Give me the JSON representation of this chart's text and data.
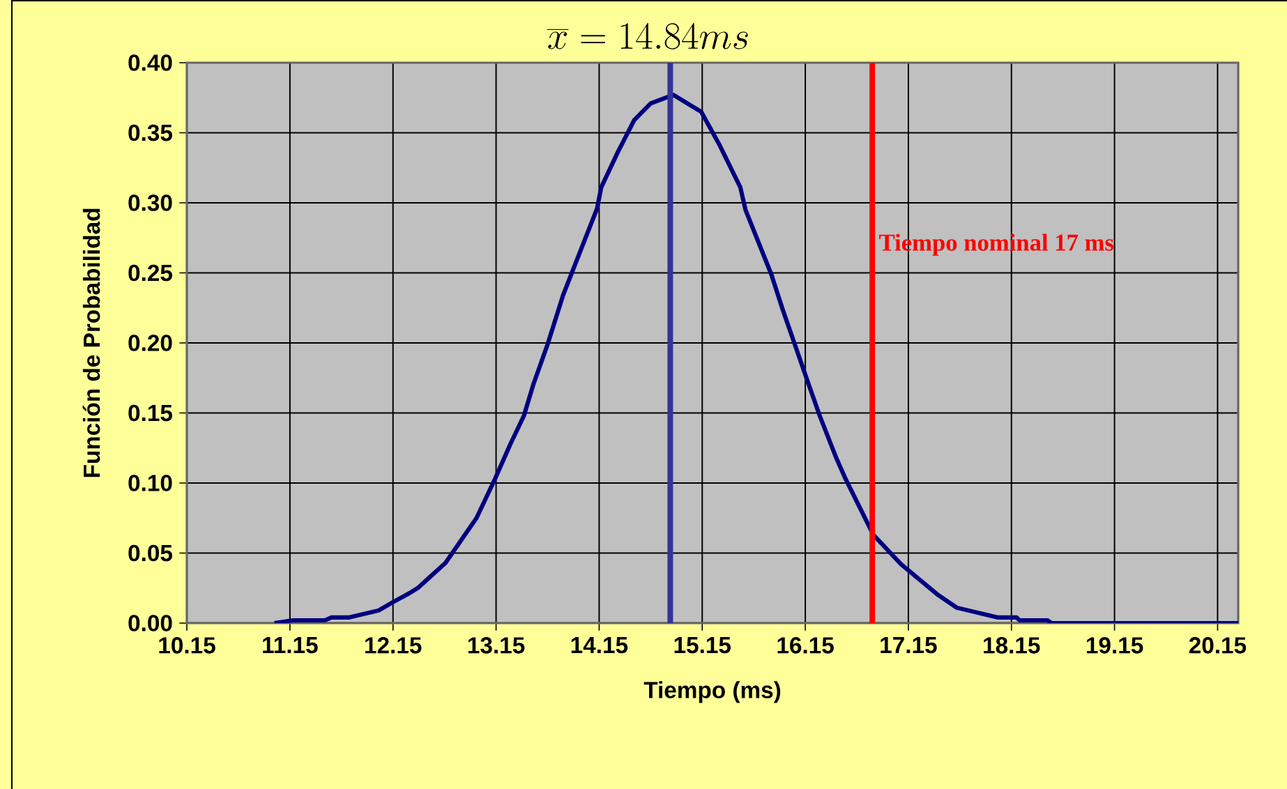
{
  "chart_data": {
    "type": "line",
    "title": "\\overline{x}=14.84ms",
    "xlabel": "Tiempo (ms)",
    "ylabel": "Función de Probabilidad",
    "xlim": [
      10.15,
      20.35
    ],
    "xticks": [
      10.15,
      11.15,
      12.15,
      13.15,
      14.15,
      15.15,
      16.15,
      17.15,
      18.15,
      19.15,
      20.15
    ],
    "ylim": [
      0,
      0.4
    ],
    "yticks": [
      {
        "value": 0,
        "label": "0.00"
      },
      {
        "value": 0.05,
        "label": "0.05"
      },
      {
        "value": 0.1,
        "label": "0.10"
      },
      {
        "value": 0.15,
        "label": "0.15"
      },
      {
        "value": 0.2,
        "label": "0.20"
      },
      {
        "value": 0.25,
        "label": "0.25"
      },
      {
        "value": 0.3,
        "label": "0.30"
      },
      {
        "value": 0.35,
        "label": "0.35"
      },
      {
        "value": 0.4,
        "label": "0.40"
      }
    ],
    "grid": true,
    "series": [
      {
        "color": "#000080",
        "x": [
          11.0,
          11.18,
          11.49,
          11.55,
          11.72,
          12.01,
          12.15,
          12.3,
          12.39,
          12.51,
          12.66,
          12.8,
          12.96,
          13.14,
          13.29,
          13.42,
          13.51,
          13.65,
          13.8,
          13.97,
          14.13,
          14.17,
          14.33,
          14.49,
          14.65,
          14.87,
          15.14,
          15.32,
          15.52,
          15.57,
          15.82,
          15.93,
          16.18,
          16.29,
          16.45,
          16.54,
          16.81,
          17.08,
          17.21,
          17.44,
          17.62,
          18.02,
          18.2,
          18.23,
          18.5,
          18.54,
          20.35
        ],
        "values": [
          0.0,
          0.002,
          0.002,
          0.004,
          0.004,
          0.009,
          0.015,
          0.021,
          0.025,
          0.033,
          0.043,
          0.058,
          0.075,
          0.103,
          0.128,
          0.148,
          0.17,
          0.199,
          0.234,
          0.266,
          0.296,
          0.311,
          0.336,
          0.359,
          0.371,
          0.377,
          0.365,
          0.341,
          0.311,
          0.295,
          0.249,
          0.224,
          0.171,
          0.148,
          0.118,
          0.103,
          0.063,
          0.042,
          0.034,
          0.02,
          0.011,
          0.004,
          0.004,
          0.002,
          0.002,
          0.0,
          0.0
        ]
      }
    ],
    "ref_lines": [
      {
        "axis": "x",
        "value": 14.84,
        "color": "#333399"
      },
      {
        "axis": "x",
        "value": 16.8,
        "color": "#ff0000",
        "label": "Tiempo nominal 17 ms"
      }
    ]
  }
}
